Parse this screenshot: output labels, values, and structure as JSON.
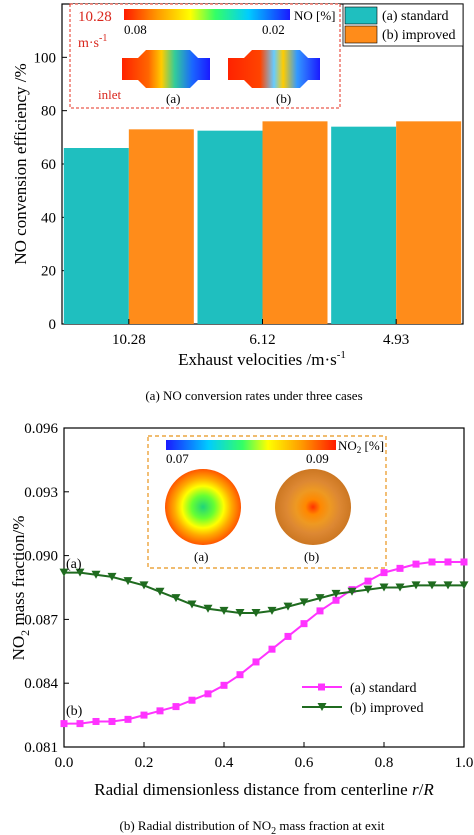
{
  "chart_data": [
    {
      "type": "bar",
      "categories": [
        "10.28",
        "6.12",
        "4.93"
      ],
      "series": [
        {
          "name": "(a) standard",
          "values": [
            66,
            72.5,
            74
          ],
          "color": "#1fbfbf"
        },
        {
          "name": "(b) improved",
          "values": [
            73,
            76,
            76
          ],
          "color": "#ff8c1a"
        }
      ],
      "xlabel": "Exhaust velocities /m·s",
      "xlabel_sup": "-1",
      "ylabel": "NO convension efficiency /%",
      "ylim": [
        0,
        120
      ],
      "yticks": [
        "0",
        "20",
        "40",
        "60",
        "80",
        "100"
      ],
      "caption": "(a)   NO conversion rates under three cases",
      "legend_position": "top-right",
      "inset": {
        "velocity_value": "10.28",
        "velocity_unit": "m·s",
        "velocity_unit_sup": "-1",
        "scale_max": "0.08",
        "scale_min": "0.02",
        "scale_label": "NO [%]",
        "left_label": "(a)",
        "right_label": "(b)",
        "inlet_label": "inlet"
      }
    },
    {
      "type": "line",
      "series": [
        {
          "name": "(a) standard",
          "color": "#ff33ff",
          "x": [
            0.0,
            0.04,
            0.08,
            0.12,
            0.16,
            0.2,
            0.24,
            0.28,
            0.32,
            0.36,
            0.4,
            0.44,
            0.48,
            0.52,
            0.56,
            0.6,
            0.64,
            0.68,
            0.72,
            0.76,
            0.8,
            0.84,
            0.88,
            0.92,
            0.96,
            1.0
          ],
          "y": [
            0.0821,
            0.0821,
            0.0822,
            0.0822,
            0.0823,
            0.0825,
            0.0827,
            0.0829,
            0.0832,
            0.0835,
            0.0839,
            0.0844,
            0.085,
            0.0856,
            0.0862,
            0.0868,
            0.0874,
            0.0879,
            0.0884,
            0.0888,
            0.0892,
            0.0894,
            0.0896,
            0.0897,
            0.0897,
            0.0897
          ]
        },
        {
          "name": "(b) improved",
          "color": "#1f6b1f",
          "x": [
            0.0,
            0.04,
            0.08,
            0.12,
            0.16,
            0.2,
            0.24,
            0.28,
            0.32,
            0.36,
            0.4,
            0.44,
            0.48,
            0.52,
            0.56,
            0.6,
            0.64,
            0.68,
            0.72,
            0.76,
            0.8,
            0.84,
            0.88,
            0.92,
            0.96,
            1.0
          ],
          "y": [
            0.0892,
            0.0892,
            0.0891,
            0.089,
            0.0888,
            0.0886,
            0.0883,
            0.088,
            0.0877,
            0.0875,
            0.0874,
            0.0873,
            0.0873,
            0.0874,
            0.0876,
            0.0878,
            0.088,
            0.0882,
            0.0883,
            0.0884,
            0.0885,
            0.0885,
            0.0886,
            0.0886,
            0.0886,
            0.0886
          ]
        }
      ],
      "xlabel": "Radial dimensionless distance from centerline r/R",
      "ylabel": "NO2 mass fraction/%",
      "xlim": [
        0.0,
        1.0
      ],
      "ylim": [
        0.081,
        0.096
      ],
      "xticks": [
        "0.0",
        "0.2",
        "0.4",
        "0.6",
        "0.8",
        "1.0"
      ],
      "yticks": [
        "0.081",
        "0.084",
        "0.087",
        "0.090",
        "0.093",
        "0.096"
      ],
      "curve_labels": [
        "(a)",
        "(b)"
      ],
      "caption": "(b) Radial distribution of NO",
      "caption_sub": "2",
      "caption_tail": " mass fraction at exit",
      "legend_position": "bottom-right",
      "inset": {
        "scale_min": "0.07",
        "scale_max": "0.09",
        "scale_label": "NO",
        "scale_label_sub": "2",
        "scale_label_tail": " [%]",
        "left_label": "(a)",
        "right_label": "(b)"
      }
    }
  ]
}
